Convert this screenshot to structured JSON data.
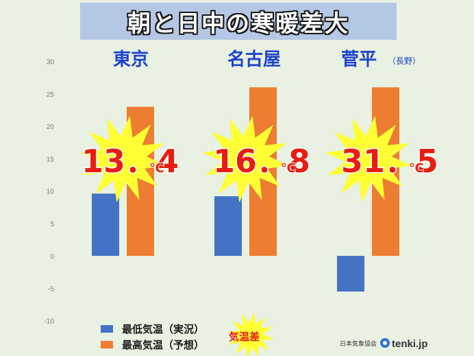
{
  "title": "朝と日中の寒暖差大",
  "colors": {
    "min": "#4472c4",
    "max": "#ed7d31",
    "diff": "#e61e12",
    "burst": "#ffff33",
    "city": "#1f43c9"
  },
  "chart_data": {
    "type": "bar",
    "categories": [
      "東京",
      "名古屋",
      "菅平"
    ],
    "category_notes": [
      "",
      "",
      "（長野）"
    ],
    "series": [
      {
        "name": "最低気温（実況）",
        "values": [
          9.6,
          9.2,
          -5.5
        ]
      },
      {
        "name": "最高気温（予想）",
        "values": [
          23,
          26,
          26
        ]
      }
    ],
    "differences": [
      {
        "num": "13．4",
        "unit": "℃"
      },
      {
        "num": "16．8",
        "unit": "℃"
      },
      {
        "num": "31．5",
        "unit": "℃"
      }
    ],
    "ylim": [
      -10,
      30
    ],
    "yticks": [
      -10,
      -5,
      0,
      5,
      10,
      15,
      20,
      25,
      30
    ],
    "grid": false,
    "legend_position": "bottom-left",
    "difference_key": "気温差"
  },
  "credit": {
    "org": "日本気象協会",
    "site": "tenki.jp"
  }
}
